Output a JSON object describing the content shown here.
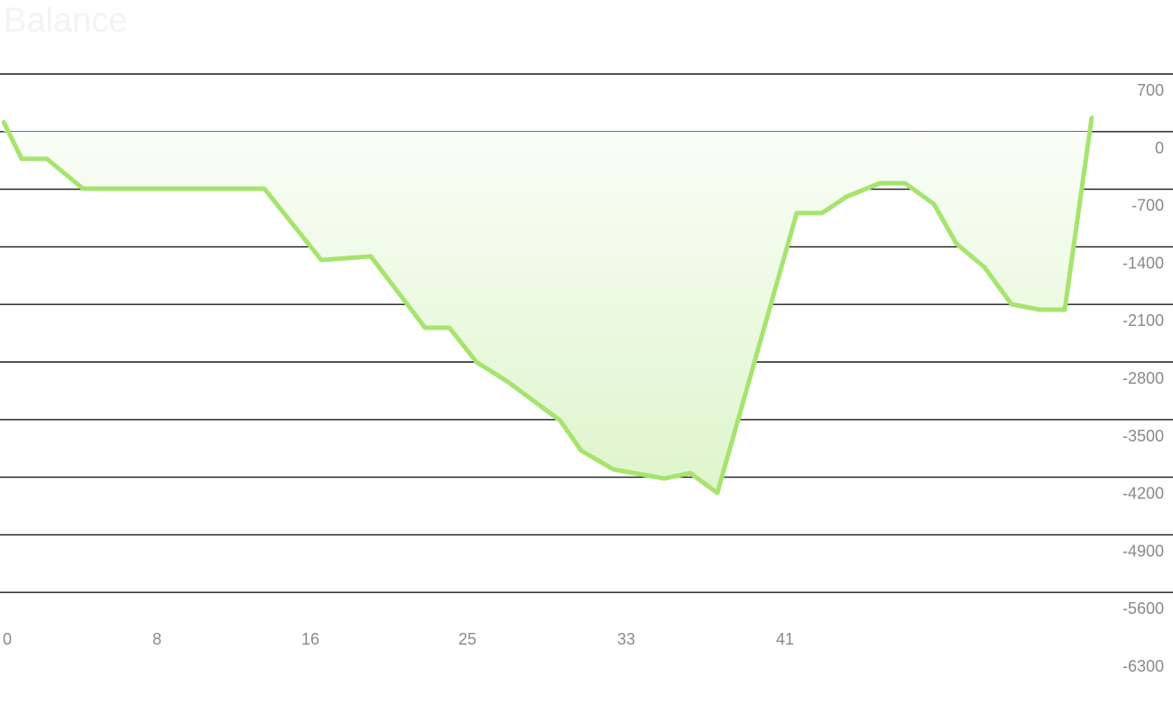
{
  "chart_data": {
    "type": "area",
    "title": "Balance",
    "xlabel": "",
    "ylabel": "",
    "x_tick_labels": [
      "0",
      "8",
      "16",
      "25",
      "33",
      "41"
    ],
    "x_tick_values": [
      0,
      8,
      16,
      25,
      33,
      41
    ],
    "y_tick_labels": [
      "700",
      "0",
      "-700",
      "-1400",
      "-2100",
      "-2800",
      "-3500",
      "-4200",
      "-4900",
      "-5600",
      "-6300"
    ],
    "y_tick_values": [
      700,
      0,
      -700,
      -1400,
      -2100,
      -2800,
      -3500,
      -4200,
      -4900,
      -5600,
      -6300
    ],
    "ylim": [
      -6300,
      700
    ],
    "grid": true,
    "y_axis_position": "right",
    "colors": {
      "line": "#a6e46e",
      "fill_top": "#fbfef9",
      "fill_bottom": "#def5cc",
      "grid": "#1a1a1a",
      "tick_text": "#8a8a8a"
    },
    "series": [
      {
        "x": [
          0,
          1,
          2,
          4,
          5,
          6,
          8,
          10,
          12,
          14,
          17,
          20,
          23,
          24,
          26,
          27,
          28,
          29,
          30,
          31,
          32,
          33,
          35,
          36,
          37,
          38,
          40,
          41,
          42,
          43,
          44,
          45,
          46,
          47,
          48,
          49,
          50,
          51,
          52,
          54,
          55
        ],
        "values": [
          60,
          -400,
          -400,
          -780,
          -780,
          -780,
          -780,
          -780,
          -780,
          -780,
          -1680,
          -1640,
          -2540,
          -2540,
          -2980,
          -3200,
          -3450,
          -3700,
          -4020,
          -4260,
          -4300,
          -4340,
          -4280,
          -4530,
          -3440,
          -2200,
          -1080,
          -1080,
          -850,
          -720,
          -720,
          -980,
          -1480,
          -1760,
          -2190,
          -2260,
          -2260,
          -1050,
          0,
          100,
          100
        ],
        "x_plotted": [
          0,
          1,
          2,
          4,
          14,
          17,
          19.7,
          22.5,
          23.9,
          25.3,
          26.7,
          28.1,
          29.4,
          30.4,
          32.2,
          34.3,
          35.8,
          37.5,
          42.1,
          43.5,
          44.8,
          46.5,
          47.9,
          49.5,
          50.8,
          52.2,
          53.6,
          55.2,
          56.5,
          58
        ]
      }
    ]
  }
}
